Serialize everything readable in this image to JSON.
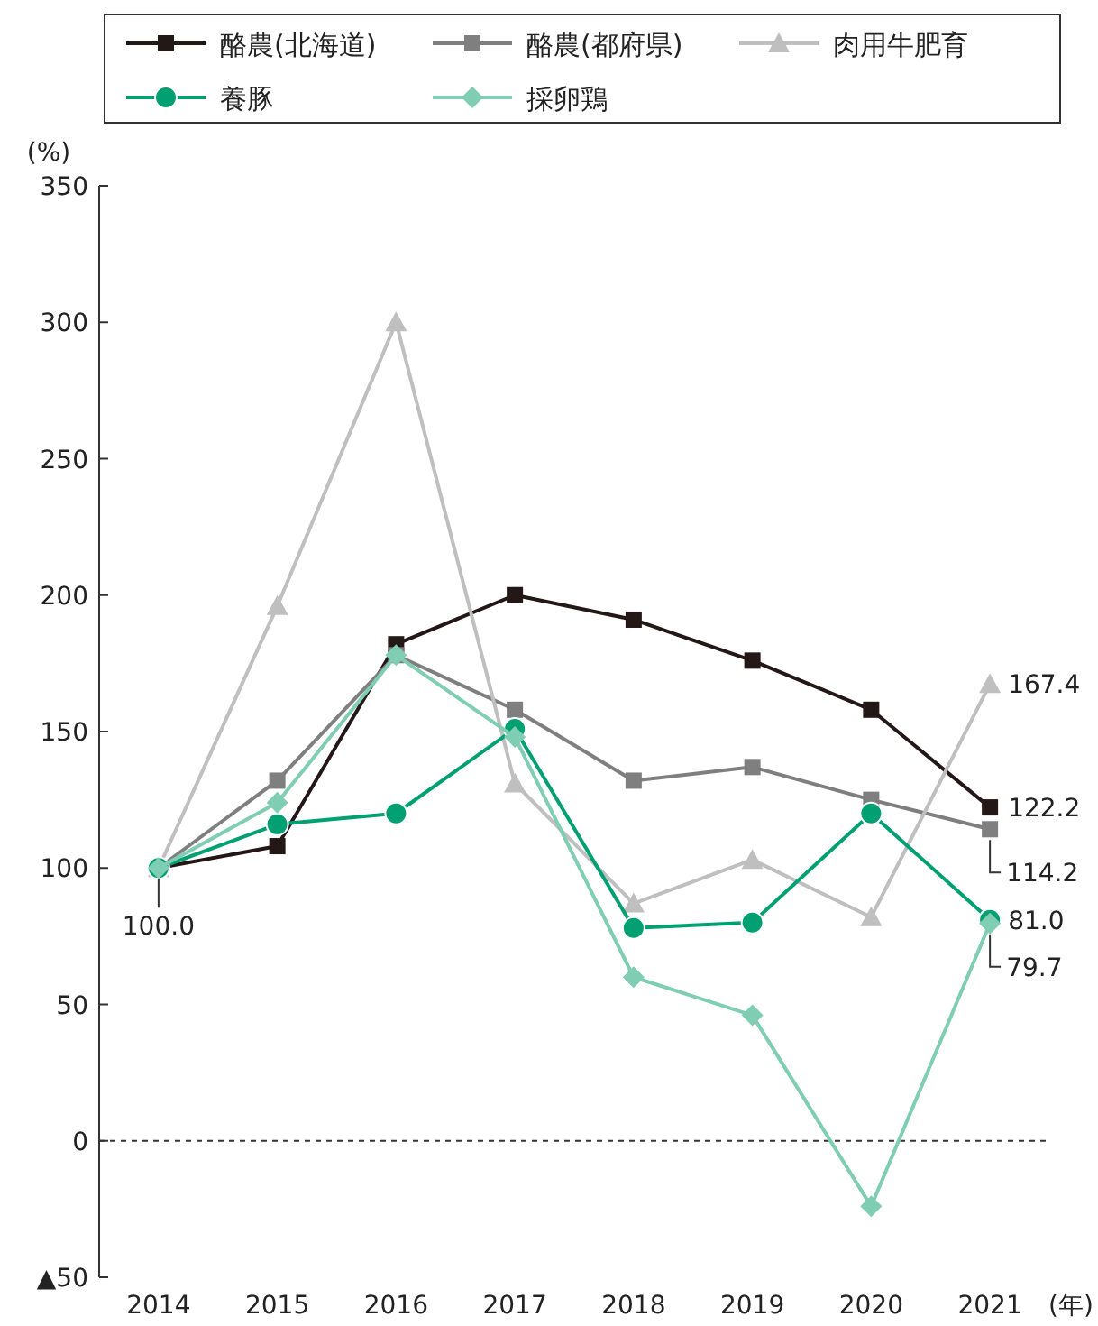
{
  "chart_data": {
    "type": "line",
    "ylabel": "(%)",
    "xlabel": "(年)",
    "categories": [
      "2014",
      "2015",
      "2016",
      "2017",
      "2018",
      "2019",
      "2020",
      "2021"
    ],
    "ylim": [
      -50,
      350
    ],
    "yticks": [
      {
        "value": -50,
        "label": "▲50"
      },
      0,
      50,
      100,
      150,
      200,
      250,
      300,
      350
    ],
    "grid": false,
    "legend": "top",
    "ref_lines": [
      {
        "axis": "y",
        "value": 0,
        "line_style": "dotted",
        "color": "#333333"
      }
    ],
    "series": [
      {
        "name": "酪農(北海道)",
        "color": "#231815",
        "marker": "square",
        "values": [
          100,
          108,
          182,
          200,
          191,
          176,
          158,
          122.2
        ],
        "value_labels": [
          "100.0",
          null,
          null,
          null,
          null,
          null,
          null,
          "122.2"
        ]
      },
      {
        "name": "酪農(都府県)",
        "color": "#7f7f7f",
        "marker": "square",
        "values": [
          100,
          132,
          178,
          158,
          132,
          137,
          125,
          114.2
        ],
        "value_labels": [
          null,
          null,
          null,
          null,
          null,
          null,
          null,
          "114.2"
        ]
      },
      {
        "name": "肉用牛肥育",
        "color": "#bfbfbf",
        "marker": "triangle",
        "values": [
          100,
          196,
          300,
          131,
          87,
          103,
          82,
          167.4
        ],
        "value_labels": [
          null,
          null,
          null,
          null,
          null,
          null,
          null,
          "167.4"
        ]
      },
      {
        "name": "養豚",
        "color": "#00a073",
        "marker": "circle",
        "values": [
          100,
          116,
          120,
          151,
          78,
          80,
          120,
          81.0
        ],
        "value_labels": [
          null,
          null,
          null,
          null,
          null,
          null,
          null,
          "81.0"
        ]
      },
      {
        "name": "採卵鶏",
        "color": "#7fcdb2",
        "marker": "diamond",
        "values": [
          100,
          124,
          178,
          148,
          60,
          46,
          -24,
          79.7
        ],
        "value_labels": [
          null,
          null,
          null,
          null,
          null,
          null,
          null,
          "79.7"
        ]
      }
    ]
  }
}
